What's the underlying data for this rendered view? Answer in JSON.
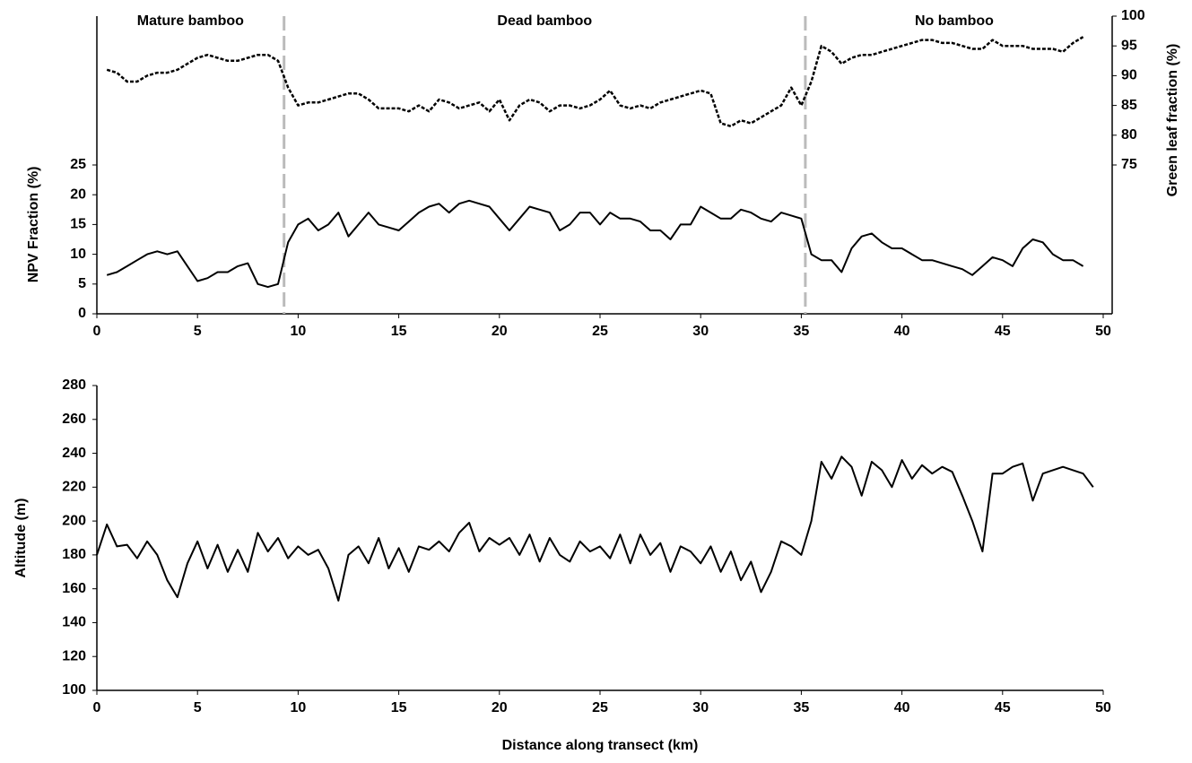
{
  "chart_data": [
    {
      "type": "line",
      "xlim": [
        0,
        50
      ],
      "xticks": [
        0,
        5,
        10,
        15,
        20,
        25,
        30,
        35,
        40,
        45,
        50
      ],
      "ylim": [
        0,
        50
      ],
      "yticks": [
        0,
        5,
        10,
        15,
        20,
        25
      ],
      "y2lim": [
        50,
        100
      ],
      "y2ticks": [
        75,
        80,
        85,
        90,
        95,
        100
      ],
      "y_label": "NPV Fraction  (%)",
      "y2_label": "Green leaf fraction (%)",
      "dividers": [
        9.3,
        35.2
      ],
      "regions": [
        "Mature bamboo",
        "Dead bamboo",
        "No bamboo"
      ],
      "x": [
        0.5,
        1,
        1.5,
        2,
        2.5,
        3,
        3.5,
        4,
        4.5,
        5,
        5.5,
        6,
        6.5,
        7,
        7.5,
        8,
        8.5,
        9,
        9.5,
        10,
        10.5,
        11,
        11.5,
        12,
        12.5,
        13,
        13.5,
        14,
        14.5,
        15,
        15.5,
        16,
        16.5,
        17,
        17.5,
        18,
        18.5,
        19,
        19.5,
        20,
        20.5,
        21,
        21.5,
        22,
        22.5,
        23,
        23.5,
        24,
        24.5,
        25,
        25.5,
        26,
        26.5,
        27,
        27.5,
        28,
        28.5,
        29,
        29.5,
        30,
        30.5,
        31,
        31.5,
        32,
        32.5,
        33,
        33.5,
        34,
        34.5,
        35,
        35.5,
        36,
        36.5,
        37,
        37.5,
        38,
        38.5,
        39,
        39.5,
        40,
        40.5,
        41,
        41.5,
        42,
        42.5,
        43,
        43.5,
        44,
        44.5,
        45,
        45.5,
        46,
        46.5,
        47,
        47.5,
        48,
        48.5,
        49
      ],
      "series": [
        {
          "color": "#000000",
          "style": "solid",
          "values": [
            6.5,
            7,
            8,
            9,
            10,
            10.5,
            10,
            10.5,
            8,
            5.5,
            6,
            7,
            7,
            8,
            8.5,
            5,
            4.5,
            5,
            12,
            15,
            16,
            14,
            15,
            17,
            13,
            15,
            17,
            15,
            14.5,
            14,
            15.5,
            17,
            18,
            18.5,
            17,
            18.5,
            19,
            18.5,
            18,
            16,
            14,
            16,
            18,
            17.5,
            17,
            14,
            15,
            17,
            17,
            15,
            17,
            16,
            16,
            15.5,
            14,
            14,
            12.5,
            15,
            15,
            18,
            17,
            16,
            16,
            17.5,
            17,
            16,
            15.5,
            17,
            16.5,
            16,
            10,
            9,
            9,
            7,
            11,
            13,
            13.5,
            12,
            11,
            11,
            10,
            9,
            9,
            8.5,
            8,
            7.5,
            6.5,
            8,
            9.5,
            9,
            8,
            11,
            12.5,
            12,
            10,
            9,
            9,
            8
          ]
        },
        {
          "color": "#000000",
          "style": "dashed",
          "axis": "y2",
          "values": [
            91,
            90.5,
            89,
            89,
            90,
            90.5,
            90.5,
            91,
            92,
            93,
            93.5,
            93,
            92.5,
            92.5,
            93,
            93.5,
            93.5,
            92.5,
            88,
            85,
            85.5,
            85.5,
            86,
            86.5,
            87,
            87,
            86,
            84.5,
            84.5,
            84.5,
            84,
            85,
            84,
            86,
            85.5,
            84.5,
            85,
            85.5,
            84,
            86,
            82.5,
            85,
            86,
            85.5,
            84,
            85,
            85,
            84.5,
            85,
            86,
            87.5,
            85,
            84.5,
            85,
            84.5,
            85.5,
            86,
            86.5,
            87,
            87.5,
            87,
            82,
            81.5,
            82.5,
            82,
            83,
            84,
            85,
            88,
            85,
            89,
            95,
            94,
            92,
            93,
            93.5,
            93.5,
            94,
            94.5,
            95,
            95.5,
            96,
            96,
            95.5,
            95.5,
            95,
            94.5,
            94.5,
            96,
            95,
            95,
            95,
            94.5,
            94.5,
            94.5,
            94,
            95.5,
            96.5
          ]
        }
      ]
    },
    {
      "type": "line",
      "xlim": [
        0,
        50
      ],
      "xticks": [
        0,
        5,
        10,
        15,
        20,
        25,
        30,
        35,
        40,
        45,
        50
      ],
      "ylim": [
        100,
        280
      ],
      "yticks": [
        100,
        120,
        140,
        160,
        180,
        200,
        220,
        240,
        260,
        280
      ],
      "x_label": "Distance along transect (km)",
      "y_label": "Altitude (m)",
      "x": [
        0,
        0.5,
        1,
        1.5,
        2,
        2.5,
        3,
        3.5,
        4,
        4.5,
        5,
        5.5,
        6,
        6.5,
        7,
        7.5,
        8,
        8.5,
        9,
        9.5,
        10,
        10.5,
        11,
        11.5,
        12,
        12.5,
        13,
        13.5,
        14,
        14.5,
        15,
        15.5,
        16,
        16.5,
        17,
        17.5,
        18,
        18.5,
        19,
        19.5,
        20,
        20.5,
        21,
        21.5,
        22,
        22.5,
        23,
        23.5,
        24,
        24.5,
        25,
        25.5,
        26,
        26.5,
        27,
        27.5,
        28,
        28.5,
        29,
        29.5,
        30,
        30.5,
        31,
        31.5,
        32,
        32.5,
        33,
        33.5,
        34,
        34.5,
        35,
        35.5,
        36,
        36.5,
        37,
        37.5,
        38,
        38.5,
        39,
        39.5,
        40,
        40.5,
        41,
        41.5,
        42,
        42.5,
        43,
        43.5,
        44,
        44.5,
        45,
        45.5,
        46,
        46.5,
        47,
        47.5,
        48,
        48.5,
        49,
        49.5
      ],
      "series": [
        {
          "color": "#000000",
          "style": "solid",
          "values": [
            180,
            198,
            185,
            186,
            178,
            188,
            180,
            165,
            155,
            175,
            188,
            172,
            186,
            170,
            183,
            170,
            193,
            182,
            190,
            178,
            185,
            180,
            183,
            172,
            153,
            180,
            185,
            175,
            190,
            172,
            184,
            170,
            185,
            183,
            188,
            182,
            193,
            199,
            182,
            190,
            186,
            190,
            180,
            192,
            176,
            190,
            180,
            176,
            188,
            182,
            185,
            178,
            192,
            175,
            192,
            180,
            187,
            170,
            185,
            182,
            175,
            185,
            170,
            182,
            165,
            176,
            158,
            170,
            188,
            185,
            180,
            200,
            235,
            225,
            238,
            232,
            215,
            235,
            230,
            220,
            236,
            225,
            233,
            228,
            232,
            229,
            215,
            200,
            182,
            228,
            228,
            232,
            234,
            212,
            228,
            230,
            232,
            230,
            228,
            220
          ]
        }
      ]
    }
  ]
}
